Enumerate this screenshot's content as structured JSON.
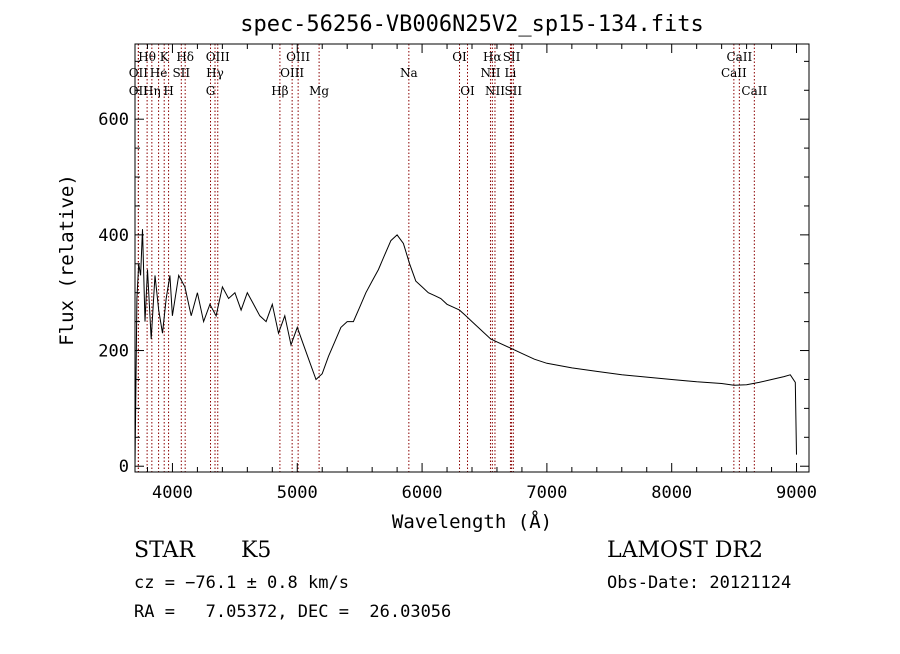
{
  "chart_data": {
    "type": "line",
    "title": "spec-56256-VB006N25V2_sp15-134.fits",
    "xlabel": "Wavelength (Å)",
    "ylabel": "Flux (relative)",
    "xlim": [
      3700,
      9100
    ],
    "ylim": [
      -10,
      730
    ],
    "x_ticks": [
      4000,
      5000,
      6000,
      7000,
      8000,
      9000
    ],
    "y_ticks": [
      0,
      200,
      400,
      600
    ],
    "x_tick_labels": [
      "4000",
      "5000",
      "6000",
      "7000",
      "8000",
      "9000"
    ],
    "y_tick_labels": [
      "0",
      "200",
      "400",
      "600"
    ],
    "series": [
      {
        "color": "#000000",
        "x": [
          3700,
          3715,
          3730,
          3745,
          3760,
          3780,
          3800,
          3830,
          3860,
          3890,
          3920,
          3950,
          3980,
          4000,
          4050,
          4100,
          4150,
          4200,
          4250,
          4300,
          4350,
          4400,
          4450,
          4500,
          4550,
          4600,
          4650,
          4700,
          4750,
          4800,
          4850,
          4900,
          4950,
          5000,
          5050,
          5100,
          5150,
          5200,
          5250,
          5300,
          5350,
          5400,
          5450,
          5500,
          5550,
          5600,
          5650,
          5700,
          5750,
          5800,
          5850,
          5900,
          5950,
          6000,
          6050,
          6100,
          6150,
          6200,
          6250,
          6300,
          6350,
          6400,
          6450,
          6500,
          6550,
          6600,
          6700,
          6800,
          6900,
          7000,
          7200,
          7400,
          7600,
          7800,
          8000,
          8200,
          8400,
          8500,
          8600,
          8700,
          8800,
          8900,
          8950,
          8990,
          9000
        ],
        "y": [
          0,
          290,
          350,
          330,
          410,
          250,
          340,
          220,
          330,
          270,
          230,
          290,
          330,
          260,
          330,
          310,
          260,
          300,
          250,
          280,
          260,
          310,
          290,
          300,
          270,
          300,
          280,
          260,
          250,
          280,
          230,
          260,
          210,
          240,
          210,
          180,
          150,
          160,
          190,
          215,
          240,
          250,
          250,
          275,
          300,
          320,
          340,
          365,
          390,
          400,
          385,
          350,
          320,
          310,
          300,
          295,
          290,
          280,
          275,
          270,
          260,
          250,
          240,
          230,
          220,
          215,
          205,
          195,
          185,
          178,
          170,
          164,
          158,
          154,
          150,
          146,
          143,
          140,
          141,
          145,
          150,
          155,
          158,
          145,
          20
        ]
      }
    ],
    "lines": [
      {
        "label": "Hθ",
        "x": 3797,
        "row": 1
      },
      {
        "label": "OII",
        "x": 3727,
        "row": 2
      },
      {
        "label": "OII",
        "x": 3727,
        "row": 3
      },
      {
        "label": "Hη",
        "x": 3835,
        "row": 3
      },
      {
        "label": "He",
        "x": 3889,
        "row": 2
      },
      {
        "label": "K",
        "x": 3934,
        "row": 1
      },
      {
        "label": "H",
        "x": 3969,
        "row": 3
      },
      {
        "label": "Hδ",
        "x": 4102,
        "row": 1
      },
      {
        "label": "SII",
        "x": 4071,
        "row": 2
      },
      {
        "label": "OIII",
        "x": 4363,
        "row": 1
      },
      {
        "label": "Hγ",
        "x": 4341,
        "row": 2
      },
      {
        "label": "G",
        "x": 4305,
        "row": 3
      },
      {
        "label": "Hβ",
        "x": 4861,
        "row": 3
      },
      {
        "label": "OIII",
        "x": 5007,
        "row": 1
      },
      {
        "label": "OIII",
        "x": 4959,
        "row": 2
      },
      {
        "label": "Mg",
        "x": 5175,
        "row": 3
      },
      {
        "label": "Na",
        "x": 5894,
        "row": 2
      },
      {
        "label": "OI",
        "x": 6300,
        "row": 1
      },
      {
        "label": "OI",
        "x": 6364,
        "row": 3
      },
      {
        "label": "Hα",
        "x": 6563,
        "row": 1
      },
      {
        "label": "NII",
        "x": 6548,
        "row": 2
      },
      {
        "label": "NII",
        "x": 6584,
        "row": 3
      },
      {
        "label": "SII",
        "x": 6717,
        "row": 1
      },
      {
        "label": "Li",
        "x": 6708,
        "row": 2
      },
      {
        "label": "SII",
        "x": 6731,
        "row": 3
      },
      {
        "label": "CaII",
        "x": 8542,
        "row": 1
      },
      {
        "label": "CaII",
        "x": 8498,
        "row": 2
      },
      {
        "label": "CaII",
        "x": 8662,
        "row": 3
      }
    ],
    "line_color": "#8b0000",
    "grid": false
  },
  "info": {
    "class": "STAR",
    "subclass": "K5",
    "survey": "LAMOST DR2",
    "cz": "cz = −76.1 ± 0.8 km/s",
    "obs_date": "Obs-Date: 20121124",
    "radec": "RA =   7.05372, DEC =  26.03056"
  }
}
